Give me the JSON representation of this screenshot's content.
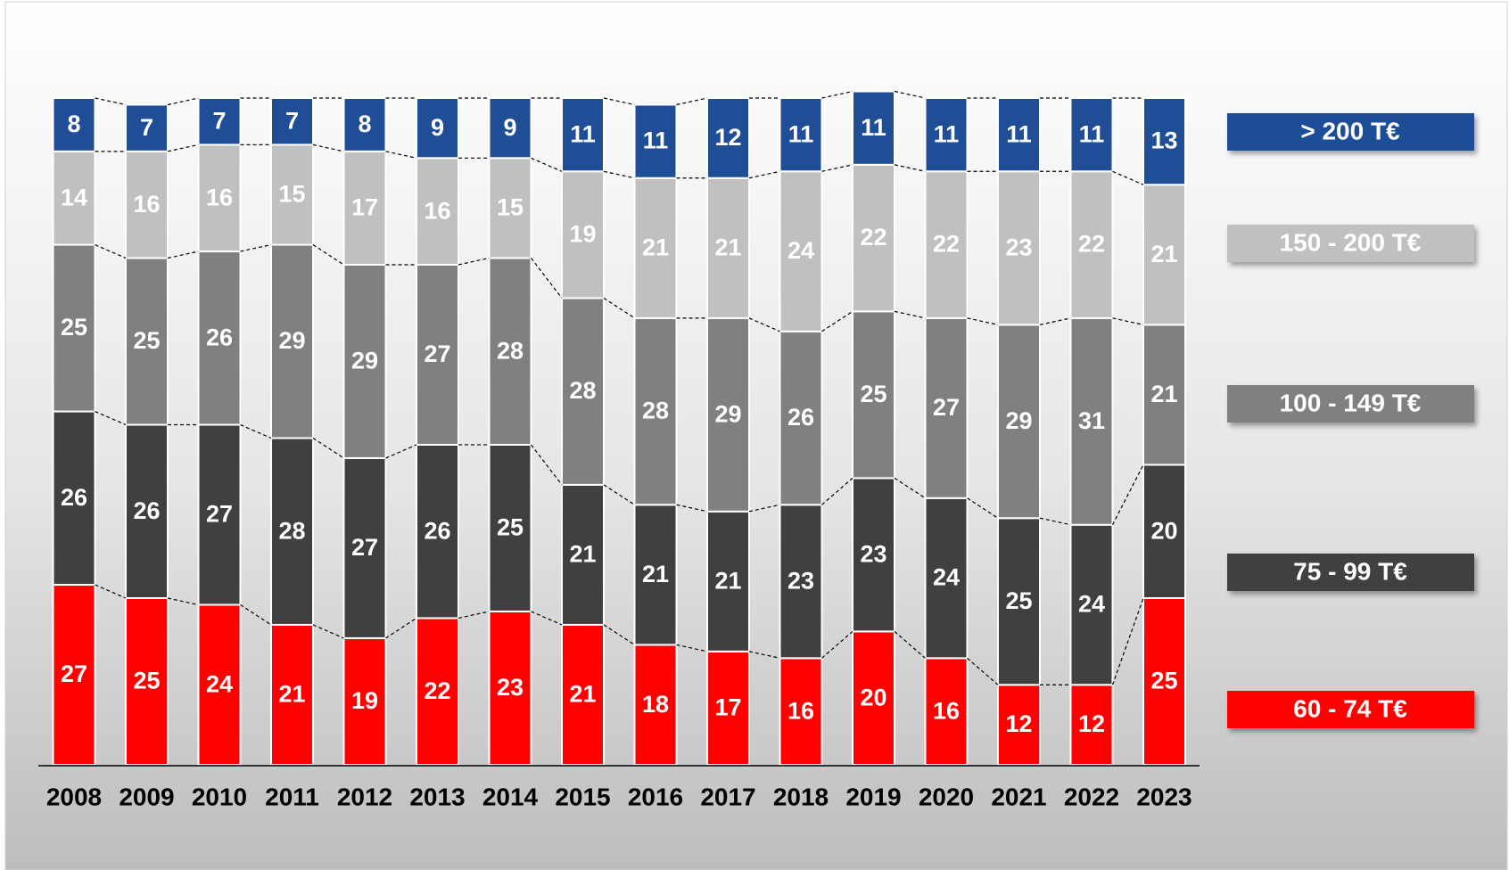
{
  "chart_data": {
    "type": "stacked_bar",
    "categories": [
      "2008",
      "2009",
      "2010",
      "2011",
      "2012",
      "2013",
      "2014",
      "2015",
      "2016",
      "2017",
      "2018",
      "2019",
      "2020",
      "2021",
      "2022",
      "2023"
    ],
    "series": [
      {
        "name": "60 - 74 T€",
        "color": "#ff0000",
        "values": [
          27,
          25,
          24,
          21,
          19,
          22,
          23,
          21,
          18,
          17,
          16,
          20,
          16,
          12,
          12,
          25
        ]
      },
      {
        "name": "75 - 99 T€",
        "color": "#404040",
        "values": [
          26,
          26,
          27,
          28,
          27,
          26,
          25,
          21,
          21,
          21,
          23,
          23,
          24,
          25,
          24,
          20
        ]
      },
      {
        "name": "100 - 149 T€",
        "color": "#808080",
        "values": [
          25,
          25,
          26,
          29,
          29,
          27,
          28,
          28,
          28,
          29,
          26,
          25,
          27,
          29,
          31,
          21
        ]
      },
      {
        "name": "150 - 200 T€",
        "color": "#c0c0c0",
        "values": [
          14,
          16,
          16,
          15,
          17,
          16,
          15,
          19,
          21,
          21,
          24,
          22,
          22,
          23,
          22,
          21
        ]
      },
      {
        "name": "> 200 T€",
        "color": "#1f4e96",
        "values": [
          8,
          7,
          7,
          7,
          8,
          9,
          9,
          11,
          11,
          12,
          11,
          11,
          11,
          11,
          11,
          13
        ]
      }
    ],
    "ylim": [
      0,
      100
    ],
    "legend": "right"
  }
}
